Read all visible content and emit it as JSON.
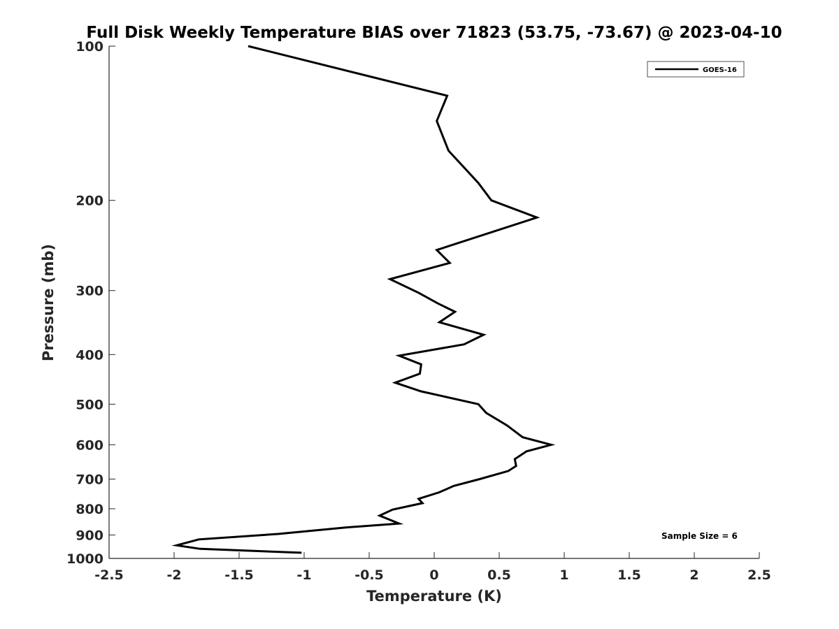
{
  "chart_data": {
    "type": "line",
    "title": "Full Disk Weekly Temperature BIAS over 71823 (53.75, -73.67) @ 2023-04-10",
    "xlabel": "Temperature (K)",
    "ylabel": "Pressure (mb)",
    "xlim": [
      -2.5,
      2.5
    ],
    "ylim": [
      1000,
      100
    ],
    "yscale": "log",
    "x_ticks": [
      "-2.5",
      "-2",
      "-1.5",
      "-1",
      "-0.5",
      "0",
      "0.5",
      "1",
      "1.5",
      "2",
      "2.5"
    ],
    "y_ticks": [
      "100",
      "200",
      "300",
      "400",
      "500",
      "600",
      "700",
      "800",
      "900",
      "1000"
    ],
    "grid": false,
    "legend_position": "top-right",
    "annotation": "Sample Size = 6",
    "series": [
      {
        "name": "GOES-16",
        "color": "#000000",
        "points": [
          {
            "t": -1.43,
            "p": 100
          },
          {
            "t": 0.1,
            "p": 125
          },
          {
            "t": 0.02,
            "p": 140
          },
          {
            "t": 0.11,
            "p": 160
          },
          {
            "t": 0.34,
            "p": 185
          },
          {
            "t": 0.44,
            "p": 200
          },
          {
            "t": 0.79,
            "p": 216
          },
          {
            "t": 0.02,
            "p": 250
          },
          {
            "t": 0.12,
            "p": 265
          },
          {
            "t": -0.34,
            "p": 285
          },
          {
            "t": -0.12,
            "p": 303
          },
          {
            "t": 0.03,
            "p": 318
          },
          {
            "t": 0.16,
            "p": 330
          },
          {
            "t": 0.04,
            "p": 346
          },
          {
            "t": 0.38,
            "p": 366
          },
          {
            "t": 0.23,
            "p": 382
          },
          {
            "t": -0.27,
            "p": 402
          },
          {
            "t": -0.1,
            "p": 418
          },
          {
            "t": -0.11,
            "p": 436
          },
          {
            "t": -0.3,
            "p": 454
          },
          {
            "t": -0.1,
            "p": 472
          },
          {
            "t": 0.34,
            "p": 500
          },
          {
            "t": 0.4,
            "p": 520
          },
          {
            "t": 0.56,
            "p": 550
          },
          {
            "t": 0.68,
            "p": 580
          },
          {
            "t": 0.9,
            "p": 600
          },
          {
            "t": 0.71,
            "p": 618
          },
          {
            "t": 0.62,
            "p": 640
          },
          {
            "t": 0.63,
            "p": 660
          },
          {
            "t": 0.57,
            "p": 675
          },
          {
            "t": 0.35,
            "p": 700
          },
          {
            "t": 0.15,
            "p": 722
          },
          {
            "t": 0.04,
            "p": 743
          },
          {
            "t": -0.12,
            "p": 765
          },
          {
            "t": -0.09,
            "p": 780
          },
          {
            "t": -0.32,
            "p": 803
          },
          {
            "t": -0.42,
            "p": 825
          },
          {
            "t": -0.27,
            "p": 855
          },
          {
            "t": -0.68,
            "p": 870
          },
          {
            "t": -1.2,
            "p": 896
          },
          {
            "t": -1.81,
            "p": 918
          },
          {
            "t": -1.98,
            "p": 943
          },
          {
            "t": -1.8,
            "p": 958
          },
          {
            "t": -1.02,
            "p": 975
          }
        ]
      }
    ]
  }
}
